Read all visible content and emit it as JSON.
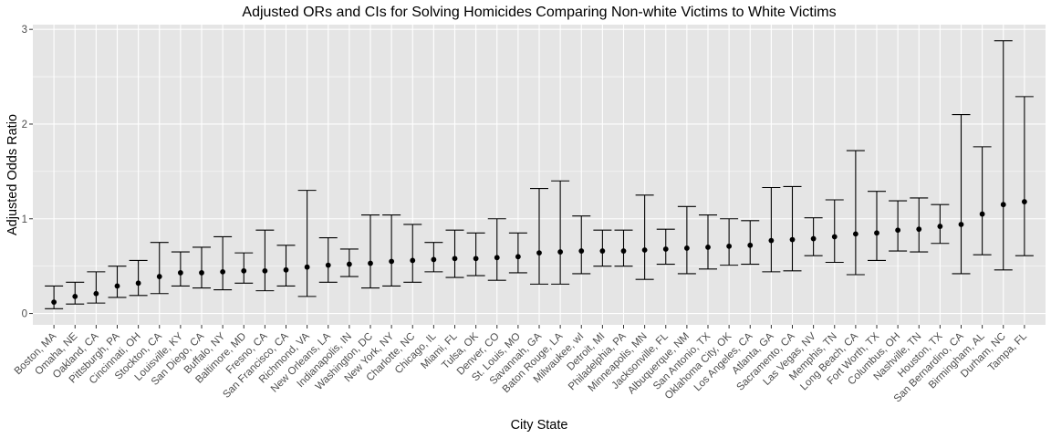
{
  "chart_data": {
    "type": "errorbar",
    "title": "Adjusted ORs and CIs for Solving Homicides Comparing Non-white Victims to White Victims",
    "xlabel": "City State",
    "ylabel": "Adjusted Odds Ratio",
    "ylim": [
      -0.12,
      3.05
    ],
    "yticks": [
      0,
      1,
      2,
      3
    ],
    "grid": true,
    "panel_background": "#e5e5e5",
    "grid_color": "#ffffff",
    "point_color": "#000000",
    "categories": [
      "Boston, MA",
      "Omaha, NE",
      "Oakland, CA",
      "Pittsburgh, PA",
      "Cincinnati, OH",
      "Stockton, CA",
      "Louisville, KY",
      "San Diego, CA",
      "Buffalo, NY",
      "Baltimore, MD",
      "Fresno, CA",
      "San Francisco, CA",
      "Richmond, VA",
      "New Orleans, LA",
      "Indianapolis, IN",
      "Washington, DC",
      "New York, NY",
      "Charlotte, NC",
      "Chicago, IL",
      "Miami, FL",
      "Tulsa, OK",
      "Denver, CO",
      "St. Louis, MO",
      "Savannah, GA",
      "Baton Rouge, LA",
      "Milwaukee, wI",
      "Detroit, MI",
      "Philadelphia, PA",
      "Minneapolis, MN",
      "Jacksonville, FL",
      "Albuquerque, NM",
      "San Antonio, TX",
      "Oklahoma City, OK",
      "Los Angeles, CA",
      "Atlanta, GA",
      "Sacramento, CA",
      "Las Vegas, NV",
      "Memphis, TN",
      "Long Beach, CA",
      "Fort Worth, TX",
      "Columbus, OH",
      "Nashville, TN",
      "Houston, TX",
      "San Bernardino, CA",
      "Birmingham, AL",
      "Durham, NC",
      "Tampa, FL"
    ],
    "or": [
      0.12,
      0.18,
      0.21,
      0.29,
      0.32,
      0.39,
      0.43,
      0.43,
      0.44,
      0.45,
      0.45,
      0.46,
      0.49,
      0.51,
      0.52,
      0.53,
      0.55,
      0.56,
      0.57,
      0.58,
      0.58,
      0.59,
      0.6,
      0.64,
      0.65,
      0.66,
      0.66,
      0.66,
      0.67,
      0.68,
      0.69,
      0.7,
      0.71,
      0.72,
      0.77,
      0.78,
      0.79,
      0.81,
      0.84,
      0.85,
      0.88,
      0.89,
      0.92,
      0.94,
      1.05,
      1.15,
      1.18
    ],
    "lower": [
      0.05,
      0.1,
      0.11,
      0.17,
      0.19,
      0.21,
      0.29,
      0.27,
      0.25,
      0.32,
      0.24,
      0.29,
      0.18,
      0.33,
      0.39,
      0.27,
      0.29,
      0.33,
      0.44,
      0.38,
      0.4,
      0.35,
      0.43,
      0.31,
      0.31,
      0.42,
      0.5,
      0.5,
      0.36,
      0.52,
      0.42,
      0.47,
      0.51,
      0.52,
      0.44,
      0.45,
      0.61,
      0.54,
      0.41,
      0.56,
      0.66,
      0.65,
      0.74,
      0.42,
      0.62,
      0.46,
      0.61
    ],
    "upper": [
      0.29,
      0.33,
      0.44,
      0.5,
      0.56,
      0.75,
      0.65,
      0.7,
      0.81,
      0.64,
      0.88,
      0.72,
      1.3,
      0.8,
      0.68,
      1.04,
      1.04,
      0.94,
      0.75,
      0.88,
      0.85,
      1.0,
      0.85,
      1.32,
      1.4,
      1.03,
      0.88,
      0.88,
      1.25,
      0.89,
      1.13,
      1.04,
      1.0,
      0.98,
      1.33,
      1.34,
      1.01,
      1.2,
      1.72,
      1.29,
      1.19,
      1.22,
      1.15,
      2.1,
      1.76,
      2.88,
      2.29
    ]
  }
}
